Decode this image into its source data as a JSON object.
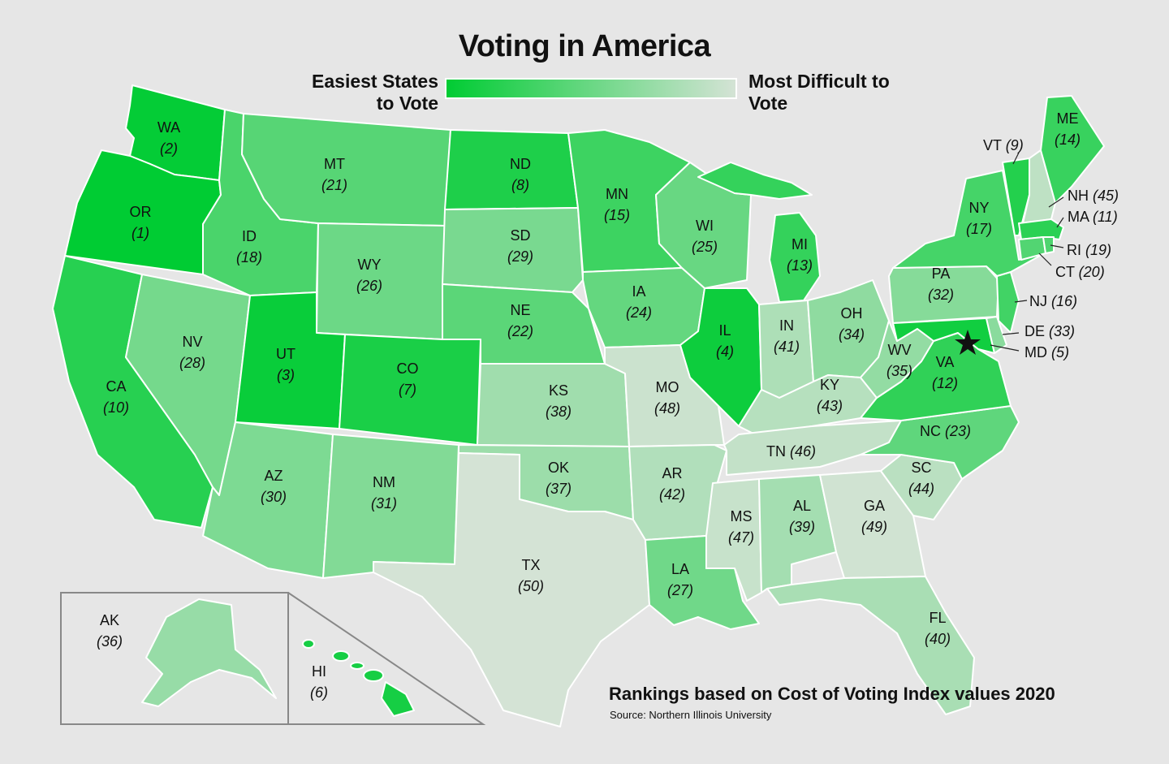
{
  "title": "Voting in America",
  "legend": {
    "easiest_label": "Easiest States to Vote",
    "hardest_label": "Most Difficult to Vote",
    "color_easiest": "#00cc33",
    "color_hardest": "#d4e3d5"
  },
  "footnote": "Rankings based on Cost of Voting Index values 2020",
  "source": "Source: Northern Illinois University",
  "marker": "star (Washington, D.C.)",
  "states": [
    {
      "abbr": "WA",
      "rank": 2
    },
    {
      "abbr": "OR",
      "rank": 1
    },
    {
      "abbr": "CA",
      "rank": 10
    },
    {
      "abbr": "ID",
      "rank": 18
    },
    {
      "abbr": "NV",
      "rank": 28
    },
    {
      "abbr": "MT",
      "rank": 21
    },
    {
      "abbr": "WY",
      "rank": 26
    },
    {
      "abbr": "UT",
      "rank": 3
    },
    {
      "abbr": "AZ",
      "rank": 30
    },
    {
      "abbr": "CO",
      "rank": 7
    },
    {
      "abbr": "NM",
      "rank": 31
    },
    {
      "abbr": "ND",
      "rank": 8
    },
    {
      "abbr": "SD",
      "rank": 29
    },
    {
      "abbr": "NE",
      "rank": 22
    },
    {
      "abbr": "KS",
      "rank": 38
    },
    {
      "abbr": "OK",
      "rank": 37
    },
    {
      "abbr": "TX",
      "rank": 50
    },
    {
      "abbr": "MN",
      "rank": 15
    },
    {
      "abbr": "IA",
      "rank": 24
    },
    {
      "abbr": "MO",
      "rank": 48
    },
    {
      "abbr": "AR",
      "rank": 42
    },
    {
      "abbr": "LA",
      "rank": 27
    },
    {
      "abbr": "WI",
      "rank": 25
    },
    {
      "abbr": "IL",
      "rank": 4
    },
    {
      "abbr": "MI",
      "rank": 13
    },
    {
      "abbr": "IN",
      "rank": 41
    },
    {
      "abbr": "OH",
      "rank": 34
    },
    {
      "abbr": "KY",
      "rank": 43
    },
    {
      "abbr": "TN",
      "rank": 46
    },
    {
      "abbr": "MS",
      "rank": 47
    },
    {
      "abbr": "AL",
      "rank": 39
    },
    {
      "abbr": "GA",
      "rank": 49
    },
    {
      "abbr": "FL",
      "rank": 40
    },
    {
      "abbr": "SC",
      "rank": 44
    },
    {
      "abbr": "NC",
      "rank": 23
    },
    {
      "abbr": "VA",
      "rank": 12
    },
    {
      "abbr": "WV",
      "rank": 35
    },
    {
      "abbr": "PA",
      "rank": 32
    },
    {
      "abbr": "NY",
      "rank": 17
    },
    {
      "abbr": "VT",
      "rank": 9
    },
    {
      "abbr": "NH",
      "rank": 45
    },
    {
      "abbr": "ME",
      "rank": 14
    },
    {
      "abbr": "MA",
      "rank": 11
    },
    {
      "abbr": "RI",
      "rank": 19
    },
    {
      "abbr": "CT",
      "rank": 20
    },
    {
      "abbr": "NJ",
      "rank": 16
    },
    {
      "abbr": "DE",
      "rank": 33
    },
    {
      "abbr": "MD",
      "rank": 5
    },
    {
      "abbr": "AK",
      "rank": 36
    },
    {
      "abbr": "HI",
      "rank": 6
    }
  ]
}
